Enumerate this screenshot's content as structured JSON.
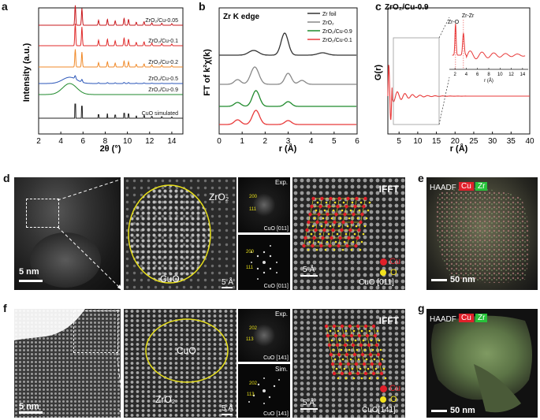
{
  "panels": {
    "a": {
      "letter": "a",
      "ylabel": "Intensity (a.u.)",
      "xlabel": "2θ (°)",
      "xticks": [
        "2",
        "4",
        "6",
        "8",
        "10",
        "12",
        "14"
      ],
      "xlim": [
        2,
        15
      ],
      "traces": [
        {
          "name": "ZrO₂/Cu-0.05",
          "color": "#c8191e"
        },
        {
          "name": "ZrO₂/Cu-0.1",
          "color": "#e02b2b"
        },
        {
          "name": "ZrO₂/Cu-0.2",
          "color": "#f08a2a"
        },
        {
          "name": "ZrO₂/Cu-0.5",
          "color": "#2a55b8"
        },
        {
          "name": "ZrO₂/Cu-0.9",
          "color": "#1f8a2c"
        },
        {
          "name": "CuO simulated",
          "color": "#222222"
        }
      ]
    },
    "b": {
      "letter": "b",
      "title": "Zr K edge",
      "ylabel": "FT of k²χ(k)",
      "xlabel": "r (Å)",
      "xticks": [
        "0",
        "1",
        "2",
        "3",
        "4",
        "5",
        "6"
      ],
      "xlim": [
        0,
        6
      ],
      "legend": [
        {
          "name": "Zr foil",
          "color": "#333333"
        },
        {
          "name": "ZrO₂",
          "color": "#888888"
        },
        {
          "name": "ZrO₂/Cu-0.9",
          "color": "#1f8a2c"
        },
        {
          "name": "ZrO₂/Cu-0.1",
          "color": "#e83a3a"
        }
      ]
    },
    "c": {
      "letter": "c",
      "title": "ZrO₂/Cu-0.9",
      "ylabel": "G(r)",
      "xlabel": "r (Å)",
      "xticks": [
        "5",
        "10",
        "15",
        "20",
        "25",
        "30",
        "35",
        "40"
      ],
      "xlim": [
        2,
        40
      ],
      "inset": {
        "labels": [
          "Zr-O",
          "Zr-Zr"
        ],
        "xlabel": "r (Å)",
        "xticks": [
          "2",
          "4",
          "6",
          "8",
          "10",
          "12",
          "14"
        ]
      }
    },
    "d": {
      "letter": "d",
      "scale1": "5 nm",
      "label_zro2": "ZrO₂",
      "label_cuo": "CuO",
      "scale2": "5 Å",
      "fft_exp": "Exp.",
      "fft_sim": "",
      "fft_zone": "CuO [011]",
      "fft_zone2": "CuO [011]",
      "hkl1": "200",
      "hkl2": "111",
      "hkl3": "200",
      "hkl4": "111",
      "ifft": "IFFT",
      "scale3": "5 Å",
      "ifft_zone": "CuO [011]",
      "legend_cu": "Cu",
      "legend_o": "O"
    },
    "e": {
      "letter": "e",
      "haadf": "HAADF",
      "cu": "Cu",
      "zr": "Zr",
      "scale": "50 nm"
    },
    "f": {
      "letter": "f",
      "scale1": "5 nm",
      "label_cuo": "CuO",
      "label_zro2": "ZrO₂",
      "scale2": "5 Å",
      "fft_exp": "Exp.",
      "fft_sim": "Sim.",
      "fft_zone": "CuO [141]",
      "fft_zone2": "CuO [141]",
      "hkl1": "202",
      "hkl2": "113",
      "hkl3": "202",
      "hkl4": "113",
      "ifft": "IFFT",
      "scale3": "5 Å",
      "ifft_zone": "CuO[141]",
      "legend_cu": "Cu",
      "legend_o": "O"
    },
    "g": {
      "letter": "g",
      "haadf": "HAADF",
      "cu": "Cu",
      "zr": "Zr",
      "scale": "50 nm"
    }
  },
  "colors": {
    "cu": "#e0202a",
    "o": "#f2e21e",
    "zr": "#27c23a",
    "ellipse": "#e8e01a"
  }
}
